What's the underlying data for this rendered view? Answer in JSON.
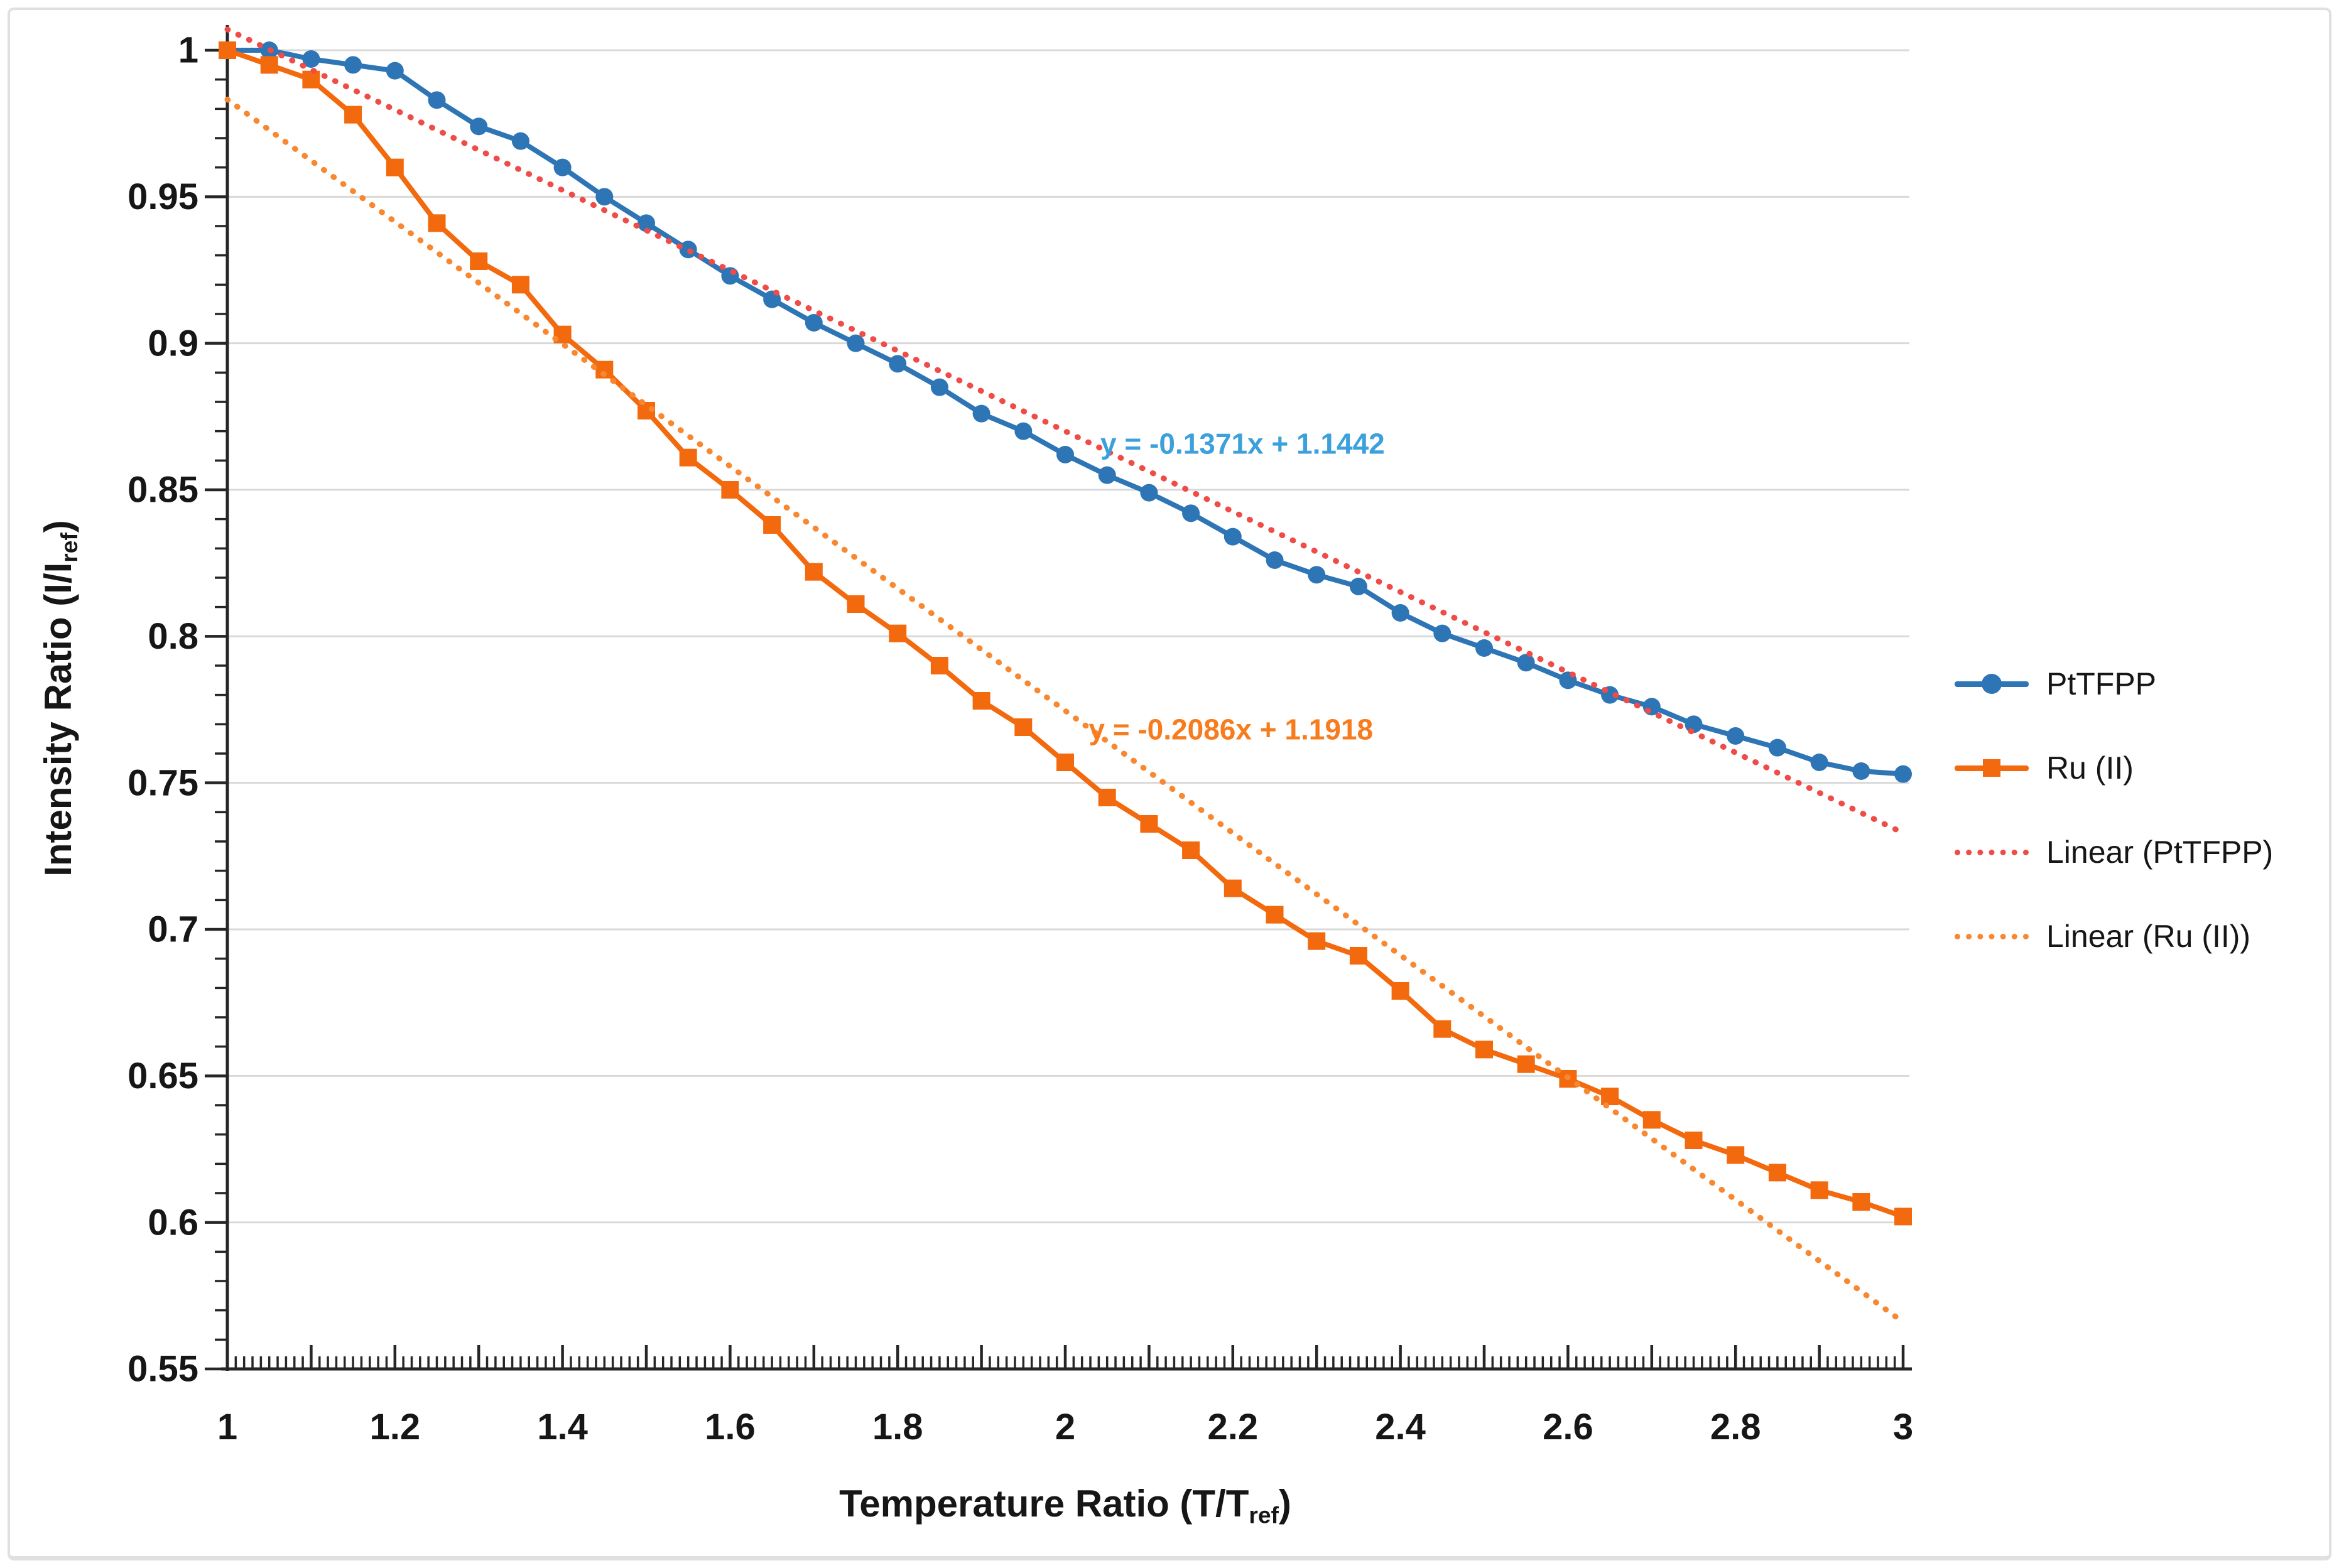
{
  "styles": {
    "background": "#ffffff",
    "border": "#e0e0e0",
    "gridline": "#d9d9d9",
    "axis": "#262626",
    "text": "#161616"
  },
  "chart_data": {
    "type": "line",
    "title": "",
    "x_axis": {
      "label_parts": [
        {
          "text": "Temperature Ratio (T/T",
          "subscript": false
        },
        {
          "text": "ref",
          "subscript": true
        },
        {
          "text": ")",
          "subscript": false
        }
      ],
      "min": 1,
      "max": 3,
      "tick_label_values": [
        1,
        1.2,
        1.4,
        1.6,
        1.8,
        2,
        2.2,
        2.4,
        2.6,
        2.8,
        3
      ],
      "tick_labels": [
        "1",
        "1.2",
        "1.4",
        "1.6",
        "1.8",
        "2",
        "2.2",
        "2.4",
        "2.6",
        "2.8",
        "3"
      ],
      "medium_tick_step": 0.1,
      "minor_tick_step": 0.01,
      "gridlines": false
    },
    "y_axis": {
      "label_parts": [
        {
          "text": "Intensity Ratio (I/I",
          "subscript": false
        },
        {
          "text": "ref",
          "subscript": true
        },
        {
          "text": ")",
          "subscript": false
        }
      ],
      "min": 0.55,
      "max": 1.0,
      "tick_label_values": [
        1,
        0.95,
        0.9,
        0.85,
        0.8,
        0.75,
        0.7,
        0.65,
        0.6,
        0.55
      ],
      "tick_labels": [
        "1",
        "0.95",
        "0.9",
        "0.85",
        "0.8",
        "0.75",
        "0.7",
        "0.65",
        "0.6",
        "0.55"
      ],
      "major_tick_step": 0.05,
      "minor_tick_step": 0.01,
      "gridlines": true
    },
    "x": [
      1.0,
      1.05,
      1.1,
      1.15,
      1.2,
      1.25,
      1.3,
      1.35,
      1.4,
      1.45,
      1.5,
      1.55,
      1.6,
      1.65,
      1.7,
      1.75,
      1.8,
      1.85,
      1.9,
      1.95,
      2.0,
      2.05,
      2.1,
      2.15,
      2.2,
      2.25,
      2.3,
      2.35,
      2.4,
      2.45,
      2.5,
      2.55,
      2.6,
      2.65,
      2.7,
      2.75,
      2.8,
      2.85,
      2.9,
      2.95,
      3.0
    ],
    "series": [
      {
        "name": "PtTFPP",
        "color": "#2E75B6",
        "marker": "circle",
        "values": [
          1.0,
          1.0,
          0.997,
          0.995,
          0.993,
          0.983,
          0.974,
          0.969,
          0.96,
          0.95,
          0.941,
          0.932,
          0.923,
          0.915,
          0.907,
          0.9,
          0.893,
          0.885,
          0.876,
          0.87,
          0.862,
          0.855,
          0.849,
          0.842,
          0.834,
          0.826,
          0.821,
          0.817,
          0.808,
          0.801,
          0.796,
          0.791,
          0.785,
          0.78,
          0.776,
          0.77,
          0.766,
          0.762,
          0.757,
          0.754,
          0.753
        ]
      },
      {
        "name": "Ru (II)",
        "color": "#F3690E",
        "marker": "square",
        "values": [
          1.0,
          0.995,
          0.99,
          0.978,
          0.96,
          0.941,
          0.928,
          0.92,
          0.903,
          0.891,
          0.877,
          0.861,
          0.85,
          0.838,
          0.822,
          0.811,
          0.801,
          0.79,
          0.778,
          0.769,
          0.757,
          0.745,
          0.736,
          0.727,
          0.714,
          0.705,
          0.696,
          0.691,
          0.679,
          0.666,
          0.659,
          0.654,
          0.649,
          0.643,
          0.635,
          0.628,
          0.623,
          0.617,
          0.611,
          0.607,
          0.602
        ]
      }
    ],
    "trendlines": [
      {
        "name": "Linear (PtTFPP)",
        "color": "#EF4B47",
        "slope": -0.1371,
        "intercept": 1.1442,
        "equation": "y = -0.1371x + 1.1442",
        "equation_color": "#3BA0DB",
        "equation_pos": {
          "x": 2.042,
          "y": 0.8655
        }
      },
      {
        "name": "Linear (Ru (II))",
        "color": "#F8872F",
        "slope": -0.2086,
        "intercept": 1.1918,
        "equation": "y = -0.2086x + 1.1918",
        "equation_color": "#F87B1C",
        "equation_pos": {
          "x": 2.028,
          "y": 0.768
        }
      }
    ],
    "legend": {
      "position": "right",
      "items": [
        {
          "label": "PtTFPP",
          "sample": "line-circle",
          "color": "#2E75B6"
        },
        {
          "label": "Ru (II)",
          "sample": "line-square",
          "color": "#F3690E"
        },
        {
          "label": "Linear (PtTFPP)",
          "sample": "dotted",
          "color": "#EF4B47"
        },
        {
          "label": "Linear (Ru (II))",
          "sample": "dotted",
          "color": "#F8872F"
        }
      ]
    }
  }
}
